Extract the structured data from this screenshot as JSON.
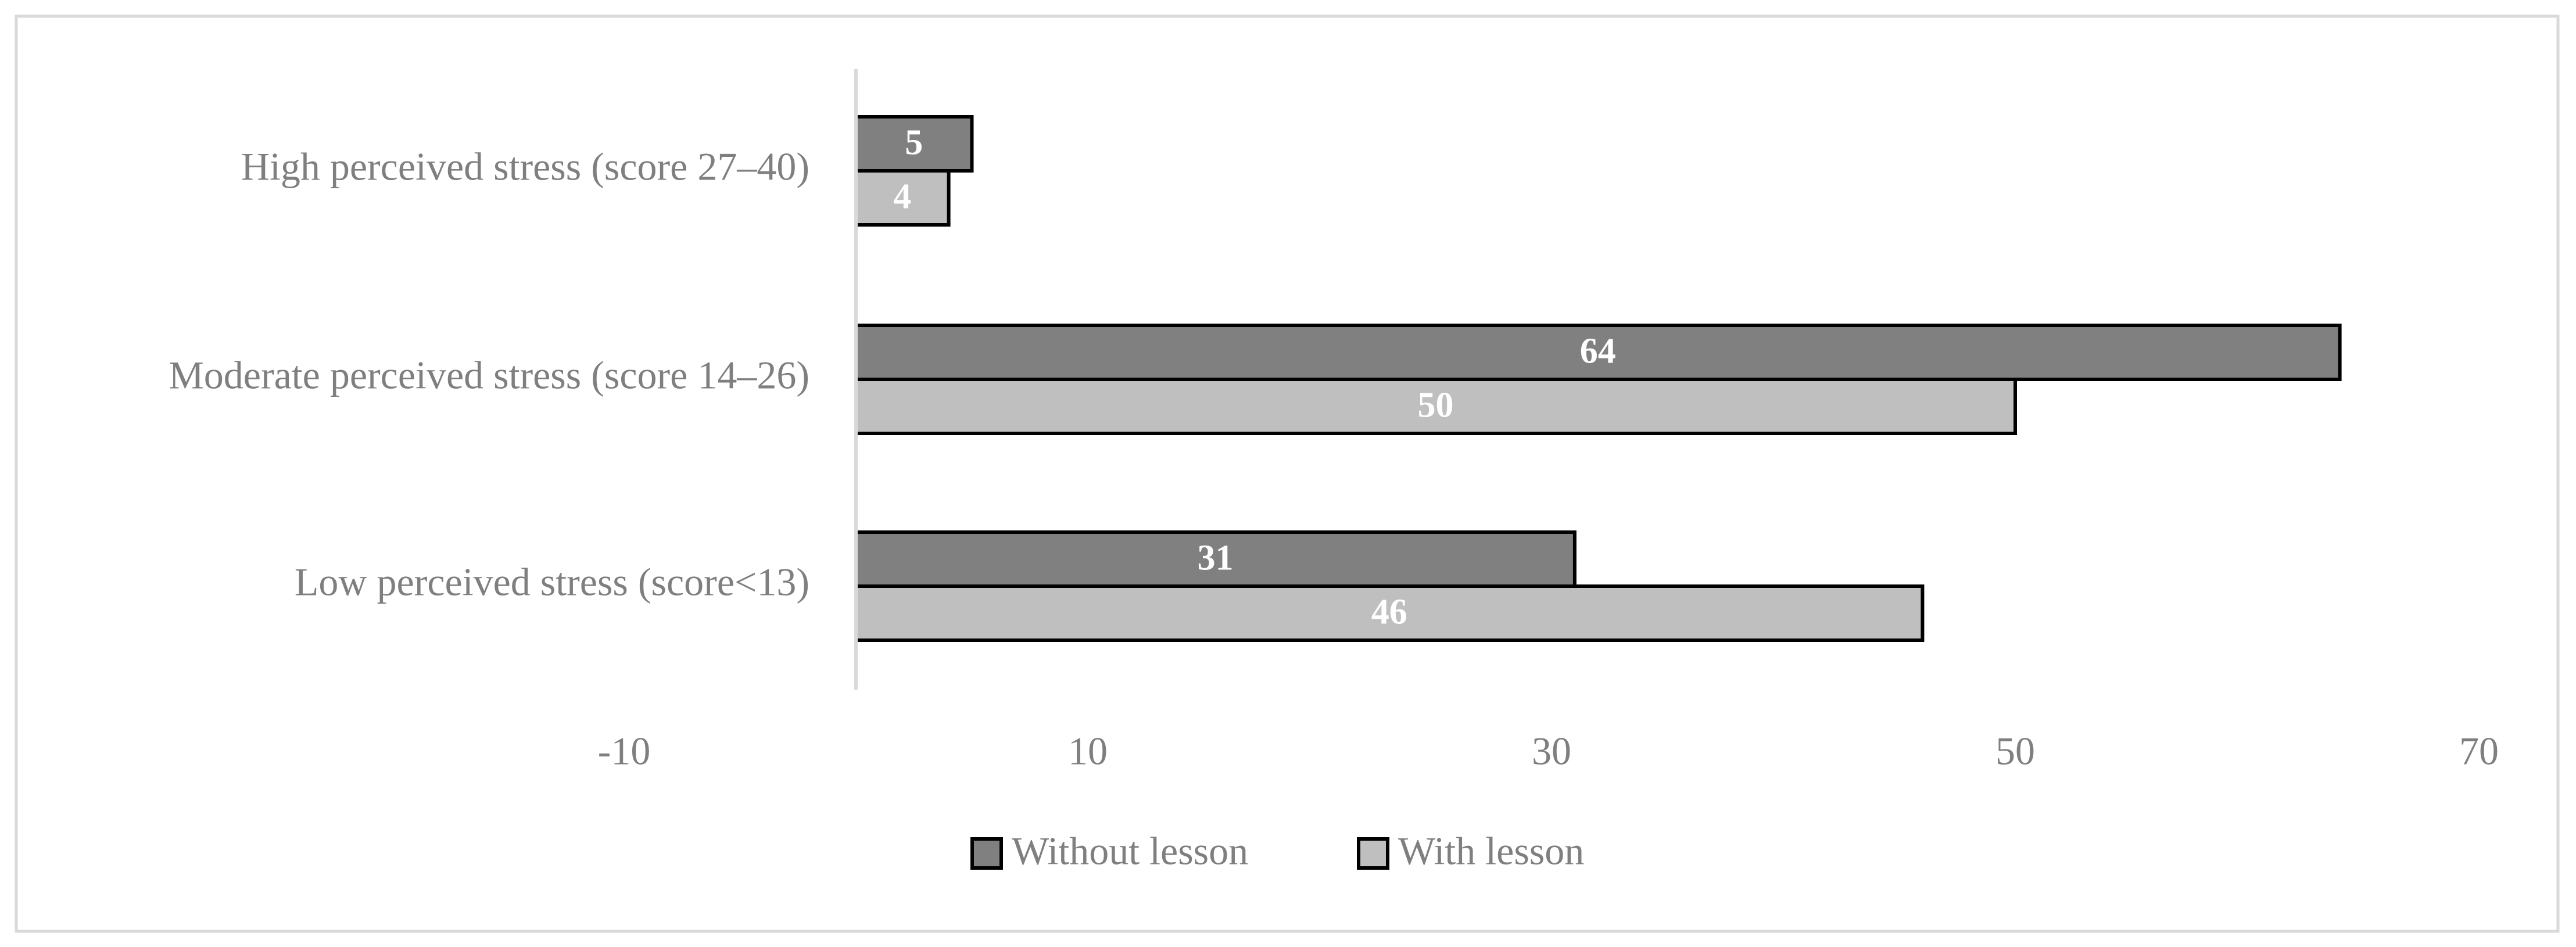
{
  "chart_data": {
    "type": "bar",
    "orientation": "horizontal",
    "categories": [
      "High perceived stress (score 27–40)",
      "Moderate perceived stress (score 14–26)",
      "Low perceived stress (score<13)"
    ],
    "series": [
      {
        "name": "Without lesson",
        "color": "#808080",
        "values": [
          5,
          64,
          31
        ]
      },
      {
        "name": "With lesson",
        "color": "#bfbfbf",
        "values": [
          4,
          50,
          46
        ]
      }
    ],
    "xlim": [
      -10,
      70
    ],
    "xticks": [
      -10,
      10,
      30,
      50,
      70
    ],
    "legend": "bottom"
  }
}
